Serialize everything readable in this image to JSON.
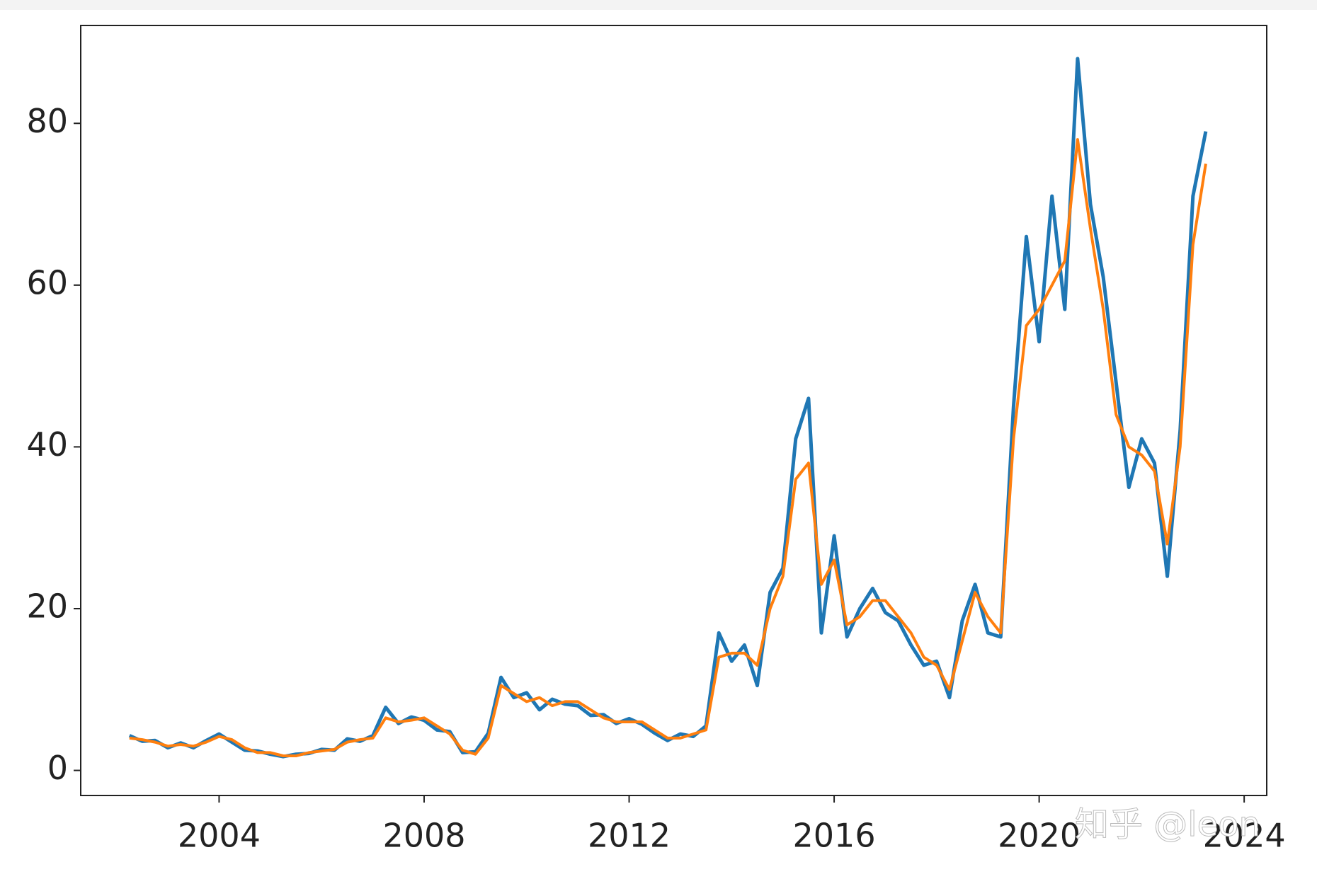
{
  "chart_data": {
    "type": "line",
    "x": [
      2002.25,
      2002.5,
      2002.75,
      2003.0,
      2003.25,
      2003.5,
      2003.75,
      2004.0,
      2004.25,
      2004.5,
      2004.75,
      2005.0,
      2005.25,
      2005.5,
      2005.75,
      2006.0,
      2006.25,
      2006.5,
      2006.75,
      2007.0,
      2007.25,
      2007.5,
      2007.75,
      2008.0,
      2008.25,
      2008.5,
      2008.75,
      2009.0,
      2009.25,
      2009.5,
      2009.75,
      2010.0,
      2010.25,
      2010.5,
      2010.75,
      2011.0,
      2011.25,
      2011.5,
      2011.75,
      2012.0,
      2012.25,
      2012.5,
      2012.75,
      2013.0,
      2013.25,
      2013.5,
      2013.75,
      2014.0,
      2014.25,
      2014.5,
      2014.75,
      2015.0,
      2015.25,
      2015.5,
      2015.75,
      2016.0,
      2016.25,
      2016.5,
      2016.75,
      2017.0,
      2017.25,
      2017.5,
      2017.75,
      2018.0,
      2018.25,
      2018.5,
      2018.75,
      2019.0,
      2019.25,
      2019.5,
      2019.75,
      2020.0,
      2020.25,
      2020.5,
      2020.75,
      2021.0,
      2021.25,
      2021.5,
      2021.75,
      2022.0,
      2022.25,
      2022.5,
      2022.75,
      2023.0,
      2023.25
    ],
    "series": [
      {
        "color": "#1f77b4",
        "values": [
          4.3,
          3.6,
          3.7,
          2.8,
          3.4,
          2.8,
          3.7,
          4.5,
          3.5,
          2.5,
          2.4,
          2.0,
          1.7,
          2.0,
          2.1,
          2.6,
          2.5,
          3.9,
          3.6,
          4.3,
          7.8,
          5.8,
          6.6,
          6.2,
          5.0,
          4.8,
          2.2,
          2.3,
          4.6,
          11.5,
          9.0,
          9.6,
          7.5,
          8.8,
          8.2,
          8.0,
          6.8,
          6.9,
          5.8,
          6.4,
          5.7,
          4.6,
          3.7,
          4.5,
          4.2,
          5.5,
          17.0,
          13.5,
          15.5,
          10.5,
          22.0,
          25.0,
          41.0,
          46.0,
          17.0,
          29.0,
          16.5,
          20.0,
          22.5,
          19.5,
          18.5,
          15.5,
          13.0,
          13.5,
          9.0,
          18.5,
          23.0,
          17.0,
          16.5,
          45.0,
          66.0,
          53.0,
          71.0,
          57.0,
          88.0,
          70.0,
          61.0,
          48.0,
          35.0,
          41.0,
          38.0,
          24.0,
          42.0,
          71.0,
          79.0
        ]
      },
      {
        "color": "#ff7f0e",
        "values": [
          4.0,
          3.8,
          3.5,
          3.0,
          3.2,
          3.0,
          3.5,
          4.2,
          3.8,
          2.8,
          2.2,
          2.2,
          1.8,
          1.8,
          2.2,
          2.4,
          2.6,
          3.5,
          3.8,
          4.0,
          6.5,
          6.0,
          6.2,
          6.5,
          5.5,
          4.5,
          2.5,
          2.0,
          4.0,
          10.5,
          9.5,
          8.5,
          9.0,
          8.0,
          8.5,
          8.5,
          7.5,
          6.5,
          6.0,
          6.0,
          6.0,
          5.0,
          4.0,
          4.0,
          4.5,
          5.0,
          14.0,
          14.5,
          14.5,
          13.0,
          20.0,
          24.0,
          36.0,
          38.0,
          23.0,
          26.0,
          18.0,
          19.0,
          21.0,
          21.0,
          19.0,
          17.0,
          14.0,
          13.0,
          10.0,
          16.0,
          22.0,
          19.0,
          17.0,
          41.0,
          55.0,
          57.0,
          60.0,
          63.0,
          78.0,
          67.0,
          57.0,
          44.0,
          40.0,
          39.0,
          37.0,
          28.0,
          40.0,
          65.0,
          75.0
        ]
      }
    ],
    "xlim": [
      2001.3,
      2024.44
    ],
    "xticks": [
      2004,
      2008,
      2012,
      2016,
      2020,
      2024
    ],
    "ylim": [
      -3.1,
      92.1
    ],
    "yticks": [
      0,
      20,
      40,
      60,
      80
    ],
    "grid": false,
    "watermark": "知乎 @leon"
  }
}
